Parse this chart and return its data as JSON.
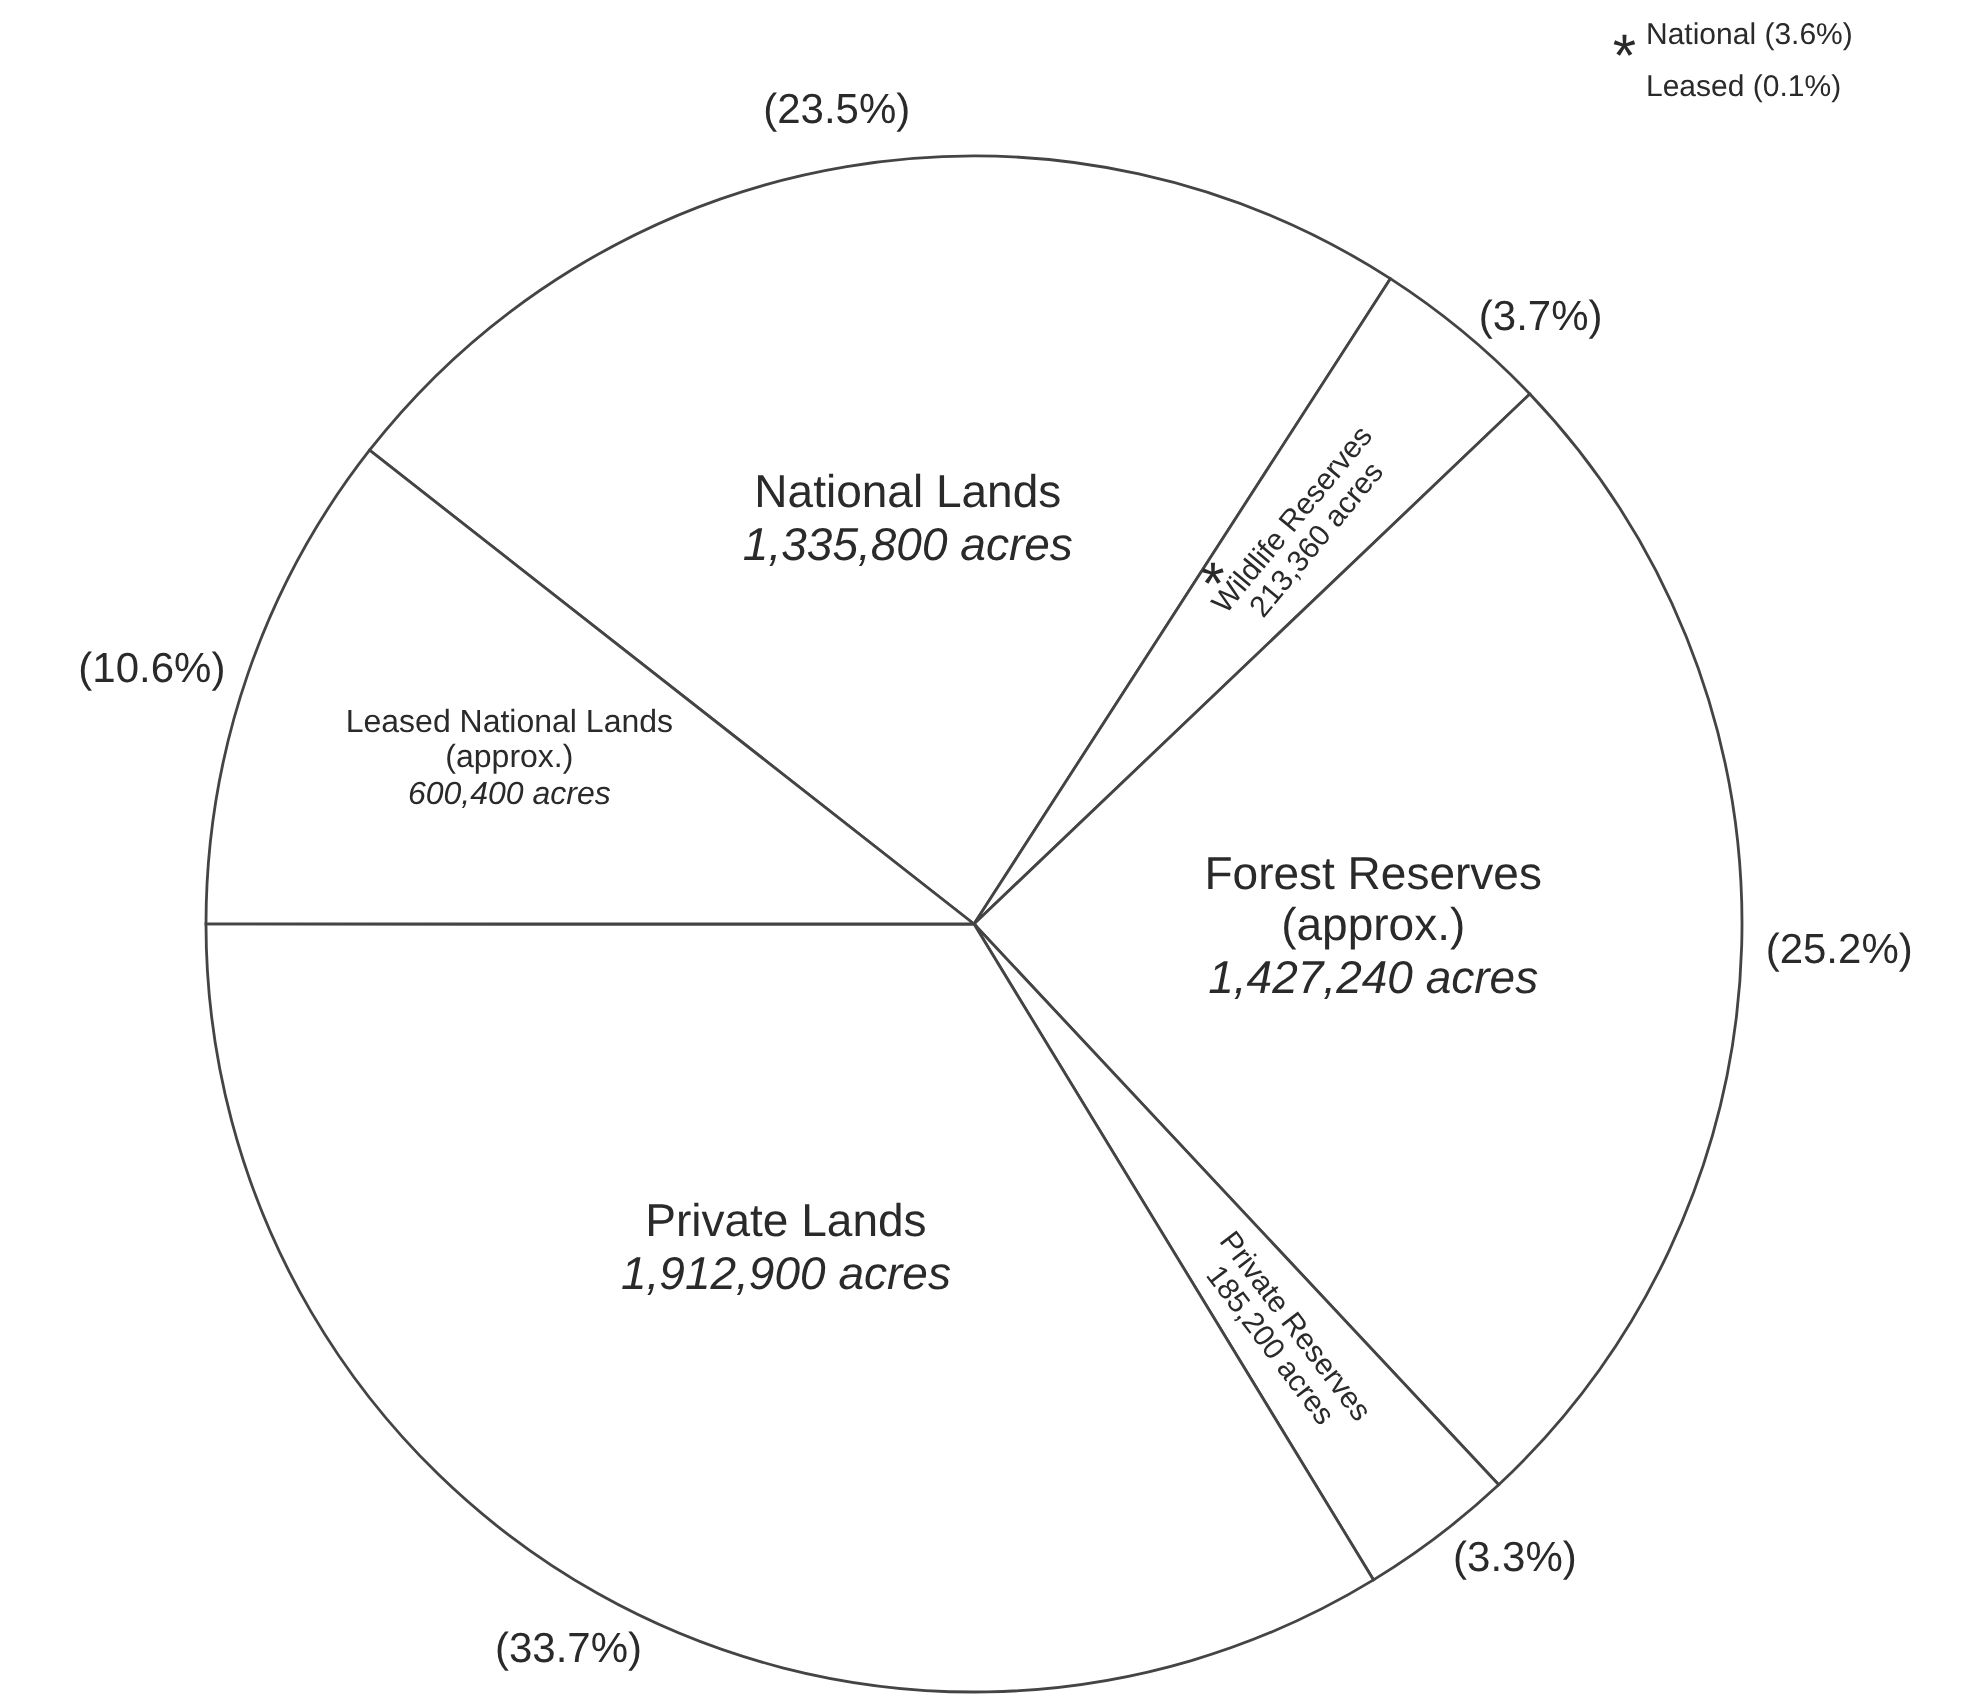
{
  "chart_data": {
    "type": "pie",
    "categories": [
      "National Lands",
      "Wildlife Reserves",
      "Forest Reserves (approx.)",
      "Private Reserves",
      "Private Lands",
      "Leased National Lands (approx.)"
    ],
    "values": [
      1335800,
      213360,
      1427240,
      185200,
      1912900,
      600400
    ],
    "value_labels": [
      "1,335,800 acres",
      "213,360 acres",
      "1,427,240 acres",
      "185,200 acres",
      "1,912,900 acres",
      "600,400 acres"
    ],
    "colors": [
      "#ffffff",
      "#ffffff",
      "#ffffff",
      "#ffffff",
      "#ffffff",
      "#ffffff"
    ],
    "annotations": [
      {
        "text": "(23.5%)",
        "x": "National Lands"
      },
      {
        "text": "(3.7%)",
        "x": "Wildlife Reserves"
      },
      {
        "text": "(25.2%)",
        "x": "Forest Reserves (approx.)"
      },
      {
        "text": "(3.3%)",
        "x": "Private Reserves"
      },
      {
        "text": "(33.7%)",
        "x": "Private Lands"
      },
      {
        "text": "(10.6%)",
        "x": "Leased National Lands (approx.)"
      },
      {
        "text": "*",
        "x": "Wildlife Reserves"
      },
      "*",
      "National (3.6%)",
      "Leased (0.1%)"
    ]
  }
}
